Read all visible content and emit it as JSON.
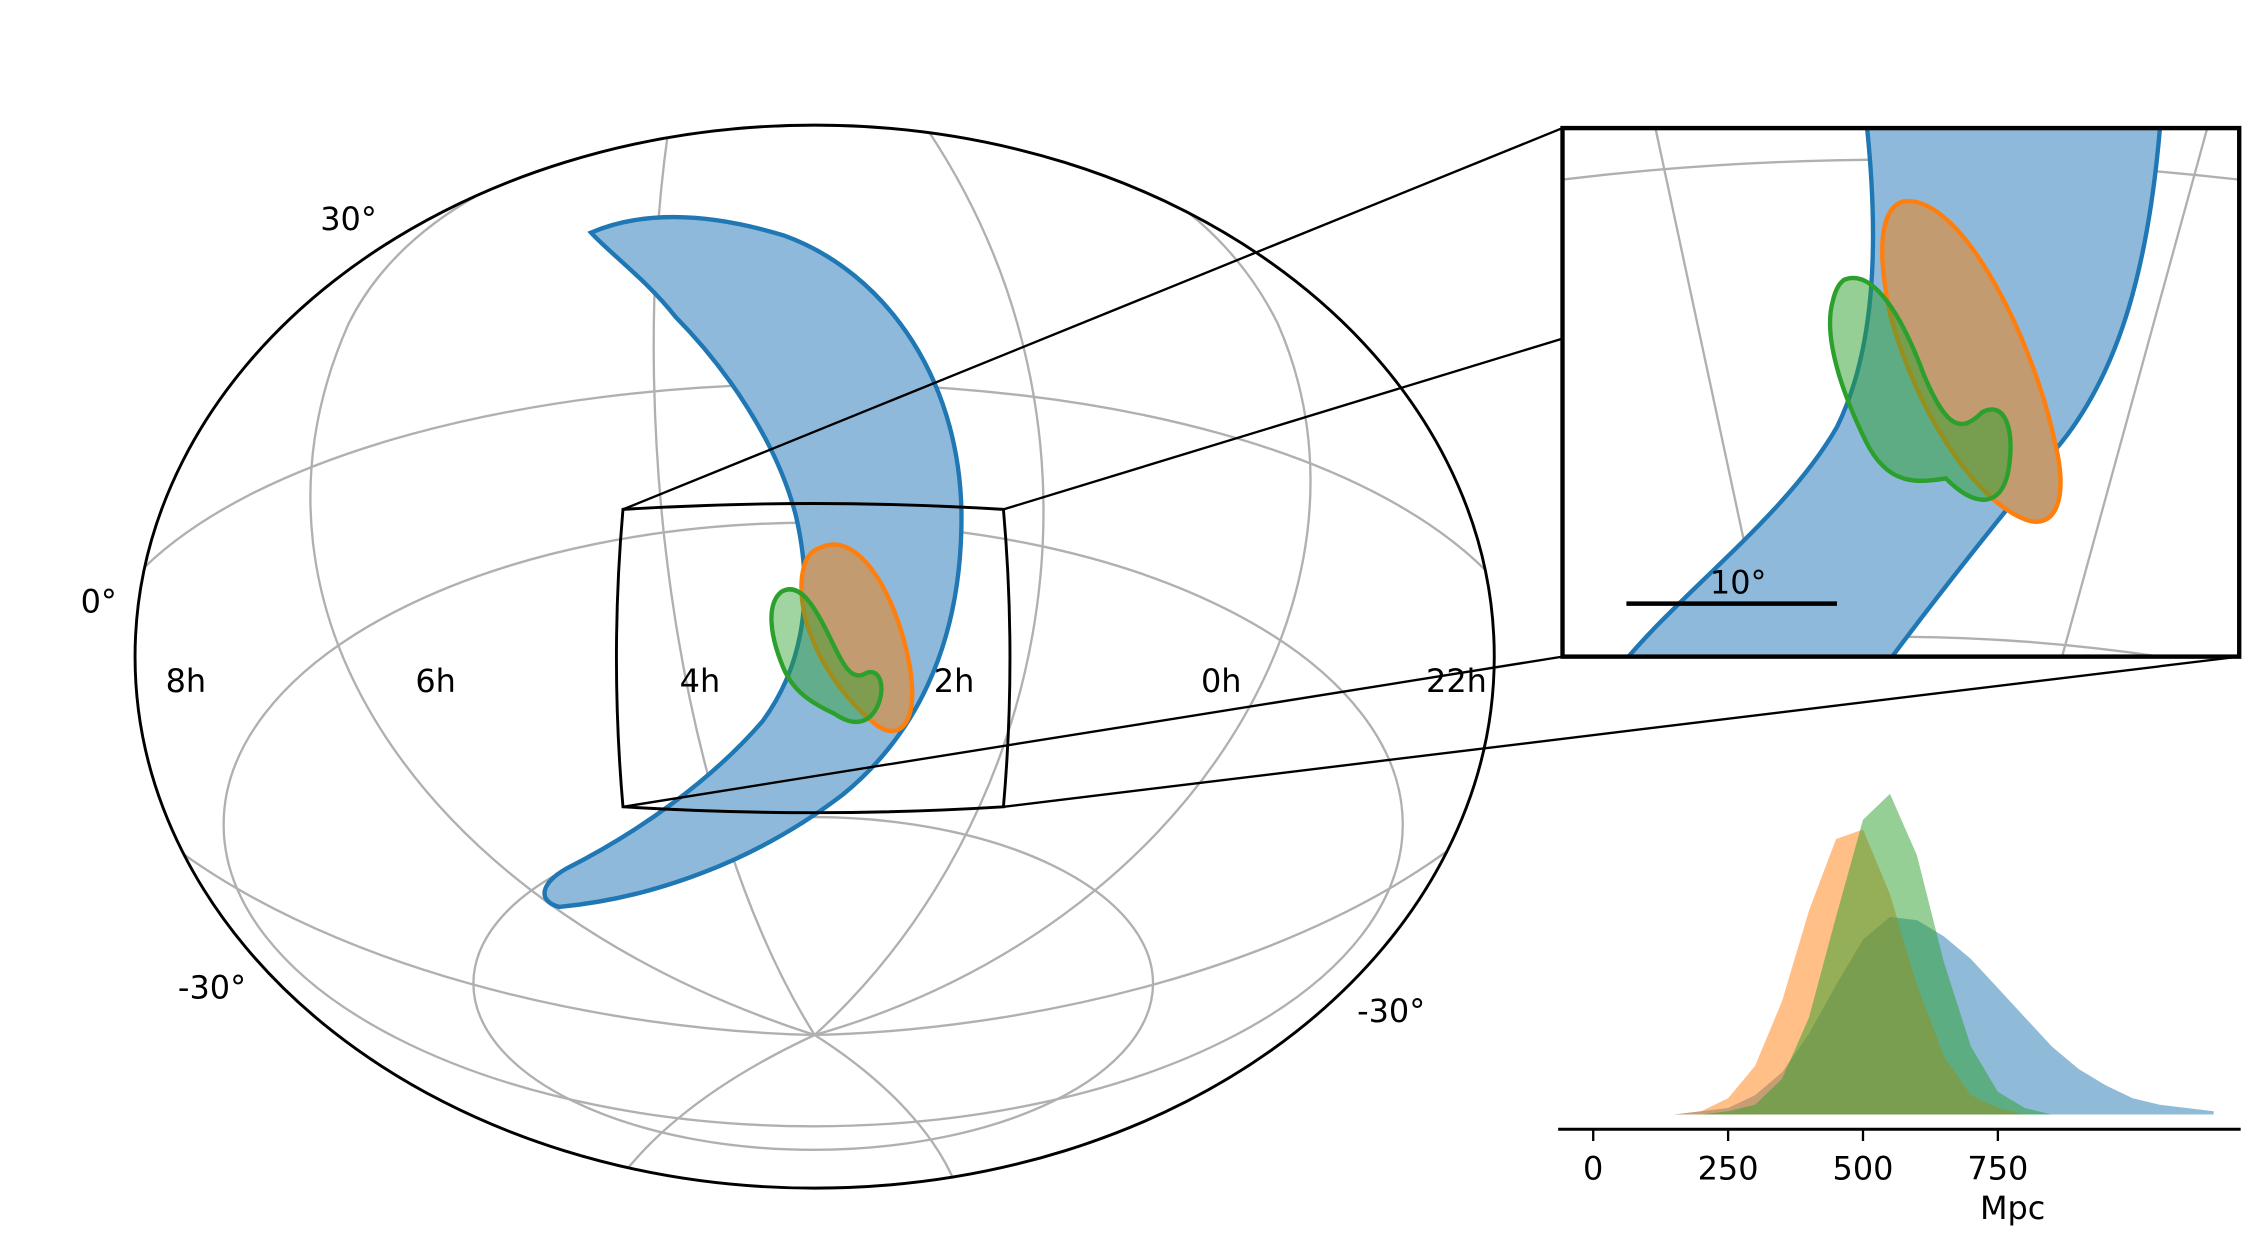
{
  "chart_data": [
    {
      "type": "skymap",
      "dec_labels": [
        "30°",
        "0°",
        "-30°",
        "-30°"
      ],
      "ra_labels": [
        "8h",
        "6h",
        "4h",
        "2h",
        "0h",
        "22h"
      ],
      "scale_label": "10°"
    },
    {
      "type": "area",
      "x": [
        0,
        50,
        100,
        150,
        200,
        250,
        300,
        350,
        400,
        450,
        500,
        550,
        600,
        650,
        700,
        750,
        800,
        850,
        900,
        950,
        1000,
        1050,
        1100,
        1150
      ],
      "series": [
        {
          "color": "#1f77b4",
          "values": [
            0,
            0,
            0,
            0,
            0.01,
            0.02,
            0.06,
            0.13,
            0.25,
            0.4,
            0.54,
            0.61,
            0.6,
            0.55,
            0.48,
            0.39,
            0.3,
            0.21,
            0.14,
            0.09,
            0.05,
            0.03,
            0.02,
            0.01
          ]
        },
        {
          "color": "#ff7f0e",
          "values": [
            0,
            0,
            0,
            0,
            0.01,
            0.05,
            0.15,
            0.35,
            0.63,
            0.85,
            0.88,
            0.68,
            0.4,
            0.18,
            0.06,
            0.02,
            0,
            0,
            0,
            0,
            0,
            0,
            0,
            0
          ]
        },
        {
          "color": "#2ca02c",
          "values": [
            0,
            0,
            0,
            0,
            0,
            0.01,
            0.03,
            0.11,
            0.3,
            0.61,
            0.91,
            0.99,
            0.8,
            0.47,
            0.21,
            0.07,
            0.02,
            0,
            0,
            0,
            0,
            0,
            0,
            0
          ]
        }
      ],
      "xlim": [
        -65,
        1200
      ],
      "xticks": [
        0,
        250,
        500,
        750
      ],
      "xlabel": "Mpc",
      "ylim": [
        0,
        1
      ]
    }
  ]
}
